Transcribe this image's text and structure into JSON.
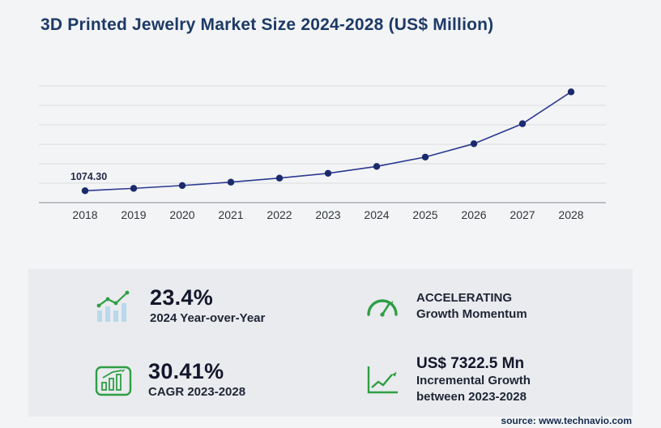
{
  "title": "3D Printed Jewelry Market Size 2024-2028 (US$ Million)",
  "source": "source: www.technavio.com",
  "colors": {
    "title": "#1d3a66",
    "line": "#2b3990",
    "point": "#1b2a6b",
    "accent_green": "#2f9e44",
    "panel_bg": "#e9ebee",
    "page_bg": "#f3f4f6",
    "gridline": "#d8dbdd"
  },
  "chart_data": {
    "type": "line",
    "title": "3D Printed Jewelry Market Size 2024-2028 (US$ Million)",
    "categories": [
      "2018",
      "2019",
      "2020",
      "2021",
      "2022",
      "2023",
      "2024",
      "2025",
      "2026",
      "2027",
      "2028"
    ],
    "values": [
      1074.3,
      1286,
      1540,
      1843,
      2207,
      2641.5,
      3259.6,
      4100,
      5300,
      7100,
      9964
    ],
    "first_point_label": "1074.30",
    "ylim": [
      0,
      10500
    ],
    "xlabel": "",
    "ylabel": "",
    "grid": "horizontal",
    "legend": "none"
  },
  "stats": {
    "yoy": {
      "value": "23.4%",
      "label": "2024 Year-over-Year"
    },
    "momentum": {
      "line1": "ACCELERATING",
      "line2": "Growth Momentum"
    },
    "cagr": {
      "value": "30.41%",
      "label": "CAGR 2023-2028"
    },
    "incremental": {
      "value": "US$ 7322.5 Mn",
      "line1": "Incremental Growth",
      "line2": "between 2023-2028"
    }
  },
  "icons": [
    "bar-chart-trend-icon",
    "speedometer-icon",
    "framed-growth-chart-icon",
    "incremental-growth-icon"
  ]
}
